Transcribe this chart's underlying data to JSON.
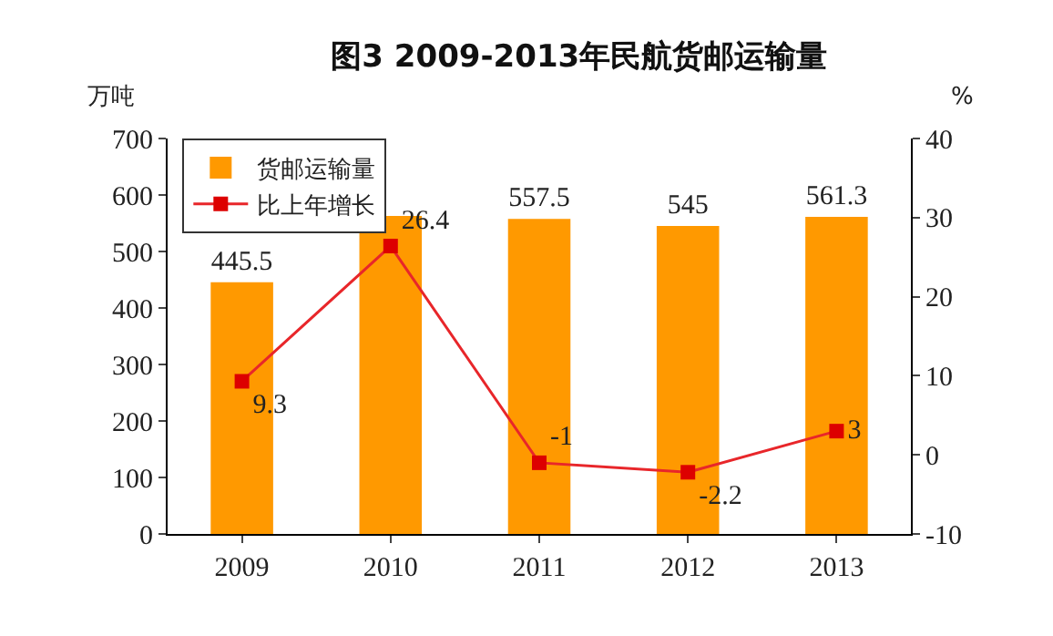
{
  "chart_data": {
    "type": "bar",
    "title": "图3 2009-2013年民航货邮运输量",
    "ylabel": "万吨",
    "y2label": "%",
    "categories": [
      "2009",
      "2010",
      "2011",
      "2012",
      "2013"
    ],
    "series": [
      {
        "name": "货邮运输量",
        "color": "#ff9900",
        "values": [
          445.5,
          563,
          557.5,
          545,
          561.3
        ],
        "value_labels": [
          "445.5",
          null,
          "557.5",
          "545",
          "561.3"
        ]
      },
      {
        "name": "比上年增长",
        "type": "line",
        "axis": "y2",
        "color": "#e8262a",
        "marker": "square",
        "values": [
          9.3,
          26.4,
          -1,
          -2.2,
          3
        ],
        "value_labels": [
          "9.3",
          "26.4",
          "-1",
          "-2.2",
          "3"
        ]
      }
    ],
    "ylim": [
      0,
      700
    ],
    "yticks": [
      0,
      100,
      200,
      300,
      400,
      500,
      600,
      700
    ],
    "y2lim": [
      -10,
      40
    ],
    "y2ticks": [
      -10,
      0,
      10,
      20,
      30,
      40
    ],
    "grid": false,
    "legend": "top left"
  }
}
